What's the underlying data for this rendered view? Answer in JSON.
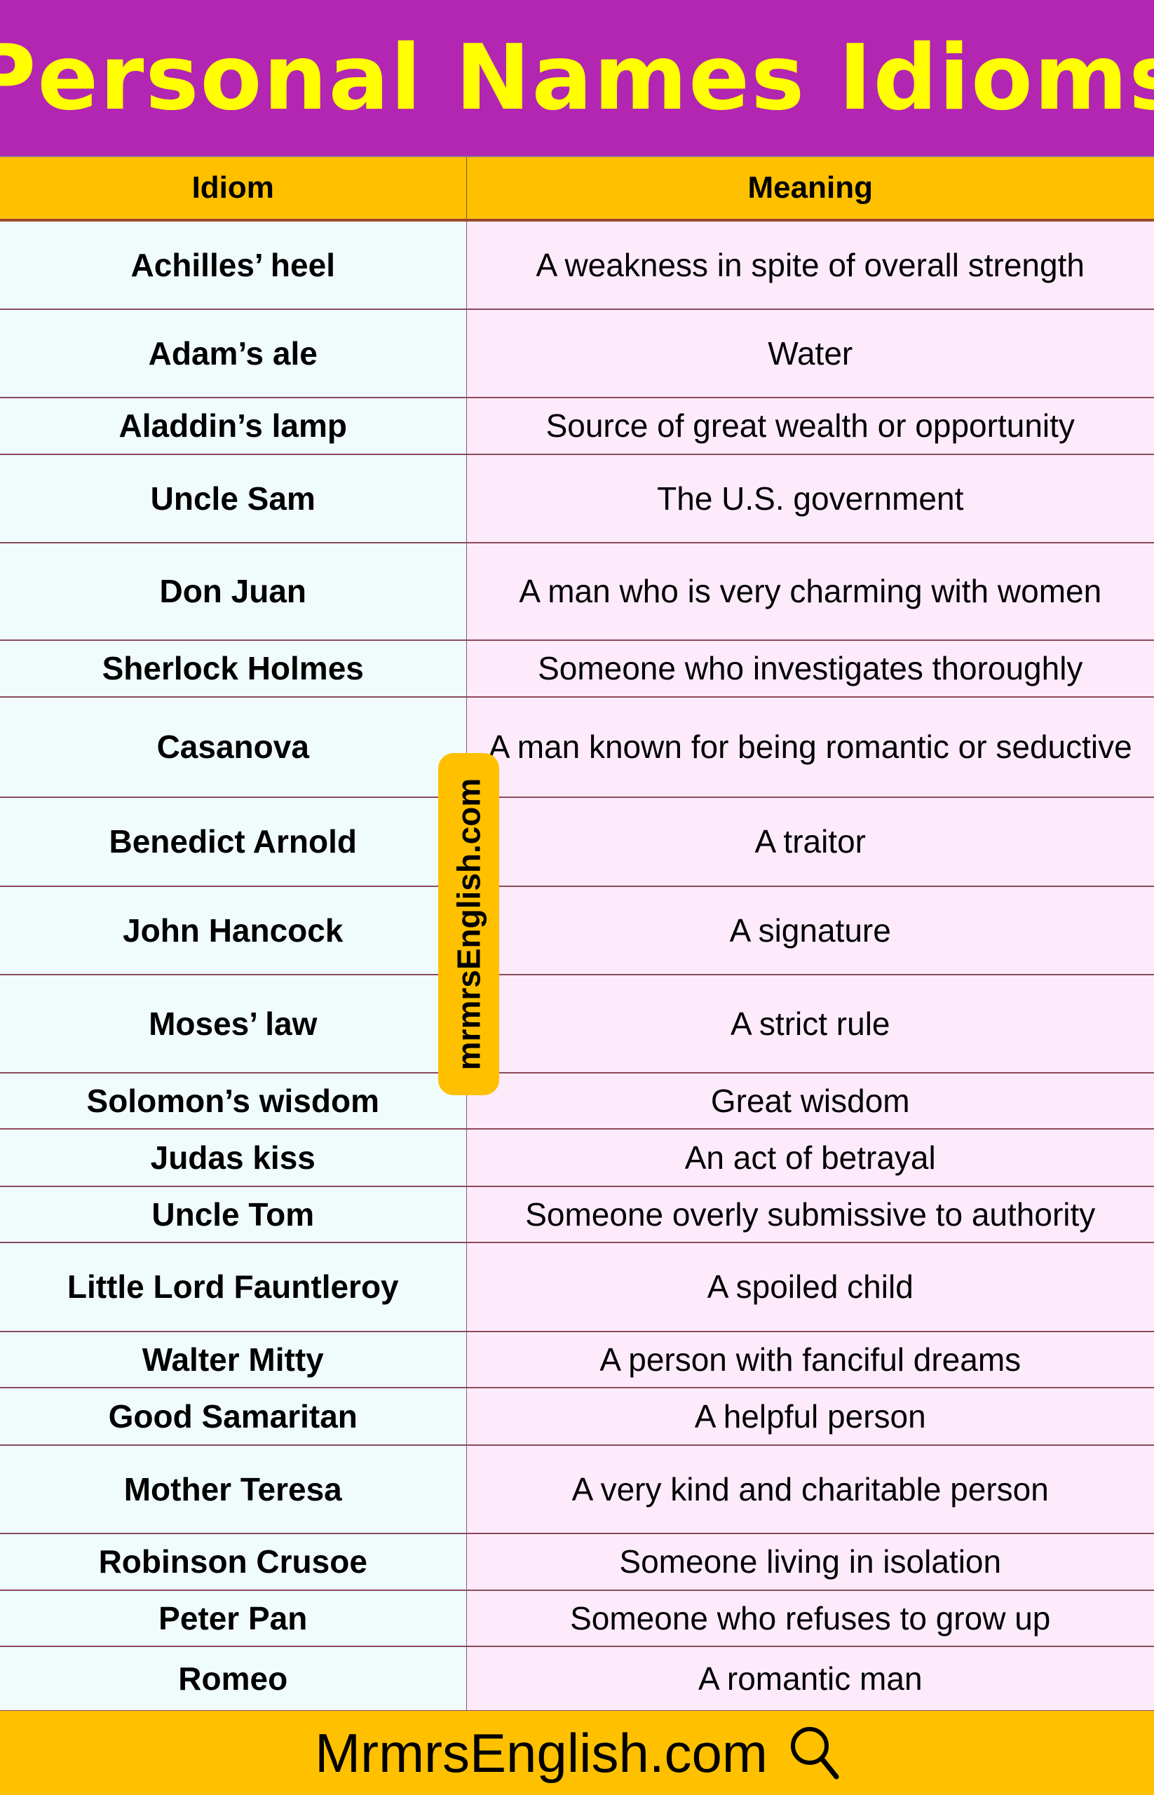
{
  "title": "Personal Names Idioms",
  "headers": {
    "idiom": "Idiom",
    "meaning": "Meaning"
  },
  "rows": [
    {
      "idiom": "Achilles’ heel",
      "meaning": "A weakness in spite of overall strength"
    },
    {
      "idiom": "Adam’s ale",
      "meaning": "Water"
    },
    {
      "idiom": "Aladdin’s lamp",
      "meaning": "Source of great wealth or opportunity"
    },
    {
      "idiom": "Uncle Sam",
      "meaning": "The U.S. government"
    },
    {
      "idiom": "Don Juan",
      "meaning": "A man who is very charming with women"
    },
    {
      "idiom": "Sherlock Holmes",
      "meaning": "Someone who investigates thoroughly"
    },
    {
      "idiom": "Casanova",
      "meaning": "A man known for being romantic or seductive"
    },
    {
      "idiom": "Benedict Arnold",
      "meaning": "A traitor"
    },
    {
      "idiom": "John Hancock",
      "meaning": "A signature"
    },
    {
      "idiom": "Moses’ law",
      "meaning": "A strict rule"
    },
    {
      "idiom": "Solomon’s wisdom",
      "meaning": "Great wisdom"
    },
    {
      "idiom": "Judas kiss",
      "meaning": "An act of betrayal"
    },
    {
      "idiom": "Uncle Tom",
      "meaning": "Someone overly submissive to authority"
    },
    {
      "idiom": "Little Lord Fauntleroy",
      "meaning": "A spoiled child"
    },
    {
      "idiom": "Walter Mitty",
      "meaning": "A person with fanciful dreams"
    },
    {
      "idiom": "Good Samaritan",
      "meaning": "A helpful person"
    },
    {
      "idiom": "Mother Teresa",
      "meaning": "A very kind and charitable person"
    },
    {
      "idiom": "Robinson Crusoe",
      "meaning": "Someone living in isolation"
    },
    {
      "idiom": "Peter Pan",
      "meaning": "Someone who refuses to grow up"
    },
    {
      "idiom": "Romeo",
      "meaning": "A romantic man"
    }
  ],
  "watermark": "mrmrsEnglish.com",
  "footer": {
    "text": "MrmrsEnglish.com",
    "icon": "search-icon"
  },
  "colors": {
    "title_bg": "#b226b2",
    "title_text": "#ffff00",
    "accent": "#ffc000",
    "idiom_bg": "#f0fcfc",
    "meaning_bg": "#fdebfb"
  }
}
